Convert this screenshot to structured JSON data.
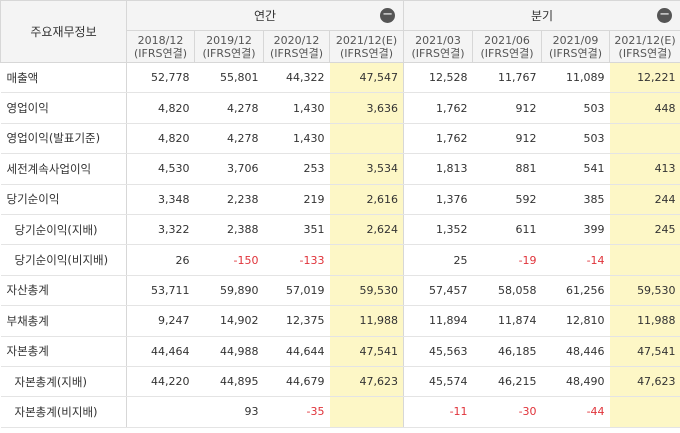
{
  "header": {
    "corner_label": "주요재무정보",
    "annual_label": "연간",
    "quarterly_label": "분기",
    "collapse_icon": "minus-icon",
    "periods": [
      {
        "date": "2018/12",
        "basis": "(IFRS연결)"
      },
      {
        "date": "2019/12",
        "basis": "(IFRS연결)"
      },
      {
        "date": "2020/12",
        "basis": "(IFRS연결)"
      },
      {
        "date": "2021/12(E)",
        "basis": "(IFRS연결)"
      },
      {
        "date": "2021/03",
        "basis": "(IFRS연결)"
      },
      {
        "date": "2021/06",
        "basis": "(IFRS연결)"
      },
      {
        "date": "2021/09",
        "basis": "(IFRS연결)"
      },
      {
        "date": "2021/12(E)",
        "basis": "(IFRS연결)"
      }
    ]
  },
  "rows": [
    {
      "label": "매출액",
      "values": [
        "52,778",
        "55,801",
        "44,322",
        "47,547",
        "12,528",
        "11,767",
        "11,089",
        "12,221"
      ]
    },
    {
      "label": "영업이익",
      "values": [
        "4,820",
        "4,278",
        "1,430",
        "3,636",
        "1,762",
        "912",
        "503",
        "448"
      ]
    },
    {
      "label": "영업이익(발표기준)",
      "values": [
        "4,820",
        "4,278",
        "1,430",
        "",
        "1,762",
        "912",
        "503",
        ""
      ]
    },
    {
      "label": "세전계속사업이익",
      "values": [
        "4,530",
        "3,706",
        "253",
        "3,534",
        "1,813",
        "881",
        "541",
        "413"
      ]
    },
    {
      "label": "당기순이익",
      "values": [
        "3,348",
        "2,238",
        "219",
        "2,616",
        "1,376",
        "592",
        "385",
        "244"
      ]
    },
    {
      "label": "당기순이익(지배)",
      "values": [
        "3,322",
        "2,388",
        "351",
        "2,624",
        "1,352",
        "611",
        "399",
        "245"
      ]
    },
    {
      "label": "당기순이익(비지배)",
      "values": [
        "26",
        "-150",
        "-133",
        "",
        "25",
        "-19",
        "-14",
        ""
      ]
    },
    {
      "label": "자산총계",
      "values": [
        "53,711",
        "59,890",
        "57,019",
        "59,530",
        "57,457",
        "58,058",
        "61,256",
        "59,530"
      ]
    },
    {
      "label": "부채총계",
      "values": [
        "9,247",
        "14,902",
        "12,375",
        "11,988",
        "11,894",
        "11,874",
        "12,810",
        "11,988"
      ]
    },
    {
      "label": "자본총계",
      "values": [
        "44,464",
        "44,988",
        "44,644",
        "47,541",
        "45,563",
        "46,185",
        "48,446",
        "47,541"
      ]
    },
    {
      "label": "자본총계(지배)",
      "values": [
        "44,220",
        "44,895",
        "44,679",
        "47,623",
        "45,574",
        "46,215",
        "48,490",
        "47,623"
      ]
    },
    {
      "label": "자본총계(비지배)",
      "values": [
        "",
        "93",
        "-35",
        "",
        "-11",
        "-30",
        "-44",
        ""
      ]
    }
  ]
}
